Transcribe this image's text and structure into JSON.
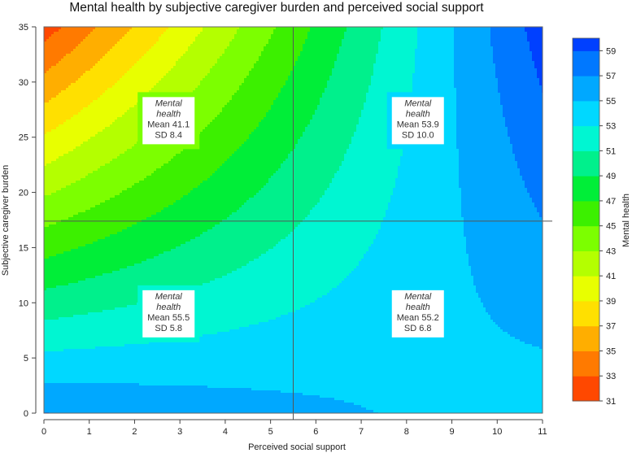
{
  "chart_data": {
    "type": "heatmap",
    "title": "Mental health by subjective caregiver burden and perceived social support",
    "xlabel": "Perceived social support",
    "ylabel": "Subjective caregiver burden",
    "xlim": [
      0,
      11
    ],
    "ylim": [
      0,
      35
    ],
    "x_ticks": [
      0,
      1,
      2,
      3,
      4,
      5,
      6,
      7,
      8,
      9,
      10,
      11
    ],
    "y_ticks": [
      0,
      5,
      10,
      15,
      20,
      25,
      30,
      35
    ],
    "reference_lines": {
      "x": 5.5,
      "y": 17.4
    },
    "colorbar": {
      "label": "Mental health",
      "ticks": [
        31,
        33,
        35,
        37,
        39,
        41,
        43,
        45,
        47,
        49,
        51,
        53,
        55,
        57,
        59
      ],
      "range": [
        31,
        60
      ],
      "level_colors": [
        "#ff4800",
        "#ff7a00",
        "#ffae00",
        "#ffe000",
        "#e8ff00",
        "#b4ff00",
        "#7cff00",
        "#3cf000",
        "#00ee38",
        "#00f08c",
        "#00f6d2",
        "#00d8ff",
        "#00a8ff",
        "#0078ff",
        "#0040ff"
      ]
    },
    "model": {
      "z_at_x0_y35": 32,
      "z_at_x11_y35": 60,
      "z_at_x0_y0": 57,
      "z_at_x11_y0": 54
    },
    "quadrants": [
      {
        "position": "top-left",
        "label": "Mental\nhealth",
        "mean": "Mean 41.1",
        "sd": "SD 8.4",
        "center_x": 2.75,
        "center_y": 26.5
      },
      {
        "position": "top-right",
        "label": "Mental\nhealth",
        "mean": "Mean 53.9",
        "sd": "SD 10.0",
        "center_x": 8.25,
        "center_y": 26.5
      },
      {
        "position": "bottom-left",
        "label": "Mental\nhealth",
        "mean": "Mean 55.5",
        "sd": "SD 5.8",
        "center_x": 2.75,
        "center_y": 9.0
      },
      {
        "position": "bottom-right",
        "label": "Mental\nhealth",
        "mean": "Mean 55.2",
        "sd": "SD 6.8",
        "center_x": 8.25,
        "center_y": 9.0
      }
    ]
  }
}
